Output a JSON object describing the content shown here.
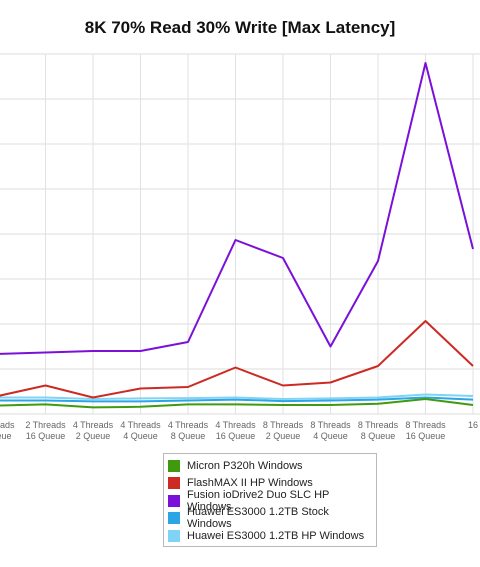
{
  "chart_data": {
    "type": "line",
    "title": "8K 70% Read 30% Write [Max Latency]",
    "x_categories": [
      [
        "Threads",
        "Queue"
      ],
      [
        "2 Threads",
        "16 Queue"
      ],
      [
        "4 Threads",
        "2 Queue"
      ],
      [
        "4 Threads",
        "4 Queue"
      ],
      [
        "4 Threads",
        "8 Queue"
      ],
      [
        "4 Threads",
        "16 Queue"
      ],
      [
        "8 Threads",
        "2 Queue"
      ],
      [
        "8 Threads",
        "4 Queue"
      ],
      [
        "8 Threads",
        "8 Queue"
      ],
      [
        "8 Threads",
        "16 Queue"
      ],
      [
        "16",
        ""
      ]
    ],
    "ylim": [
      0,
      12
    ],
    "grid": true,
    "legend_position": "bottom",
    "series": [
      {
        "name": "Micron P320h Windows",
        "color": "#3f9a0f",
        "values": [
          0.28,
          0.32,
          0.22,
          0.24,
          0.32,
          0.32,
          0.3,
          0.3,
          0.34,
          0.5,
          0.3
        ]
      },
      {
        "name": "FlashMAX II HP Windows",
        "color": "#cc2a22",
        "values": [
          0.6,
          0.95,
          0.55,
          0.85,
          0.9,
          1.55,
          0.95,
          1.05,
          1.6,
          3.1,
          1.6
        ]
      },
      {
        "name": "Fusion ioDrive2 Duo SLC HP Windows",
        "color": "#7b11d8",
        "values": [
          2.0,
          2.05,
          2.1,
          2.1,
          2.4,
          5.8,
          5.2,
          2.25,
          5.1,
          11.7,
          5.5
        ]
      },
      {
        "name": "Huawei ES3000 1.2TB Stock Windows",
        "color": "#2ba5e4",
        "values": [
          0.45,
          0.45,
          0.42,
          0.42,
          0.45,
          0.48,
          0.43,
          0.45,
          0.48,
          0.55,
          0.48
        ]
      },
      {
        "name": "Huawei ES3000 1.2TB HP Windows",
        "color": "#7fd4f6",
        "values": [
          0.55,
          0.55,
          0.5,
          0.52,
          0.53,
          0.55,
          0.5,
          0.52,
          0.55,
          0.65,
          0.6
        ]
      }
    ]
  }
}
